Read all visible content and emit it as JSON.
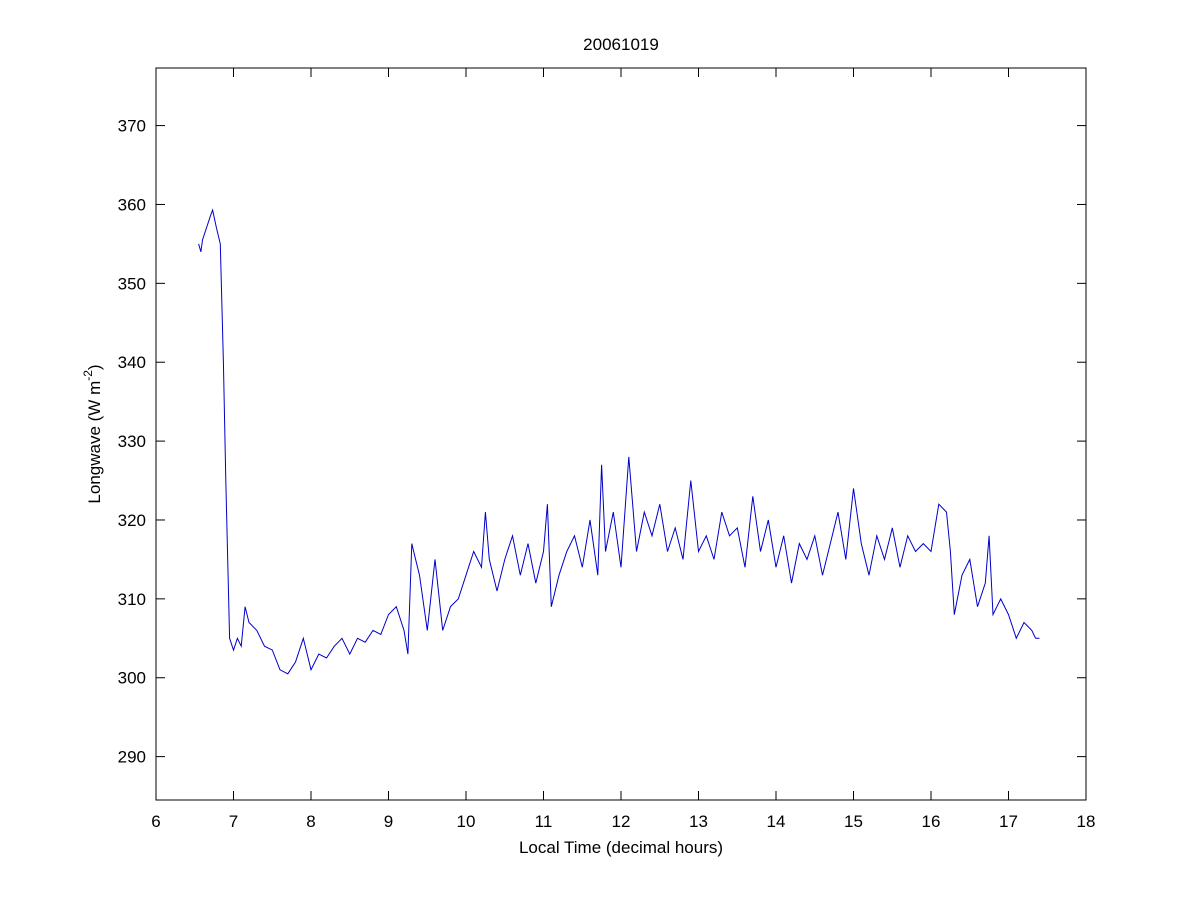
{
  "chart_data": {
    "type": "line",
    "title": "20061019",
    "xlabel": "Local Time (decimal hours)",
    "ylabel": [
      "Longwave (W m",
      "-2",
      ")"
    ],
    "x": [
      6.55,
      6.58,
      6.6,
      6.65,
      6.7,
      6.73,
      6.78,
      6.83,
      6.87,
      6.9,
      6.95,
      7.0,
      7.05,
      7.1,
      7.15,
      7.2,
      7.3,
      7.4,
      7.5,
      7.6,
      7.7,
      7.8,
      7.9,
      8.0,
      8.1,
      8.2,
      8.3,
      8.4,
      8.5,
      8.6,
      8.7,
      8.8,
      8.9,
      9.0,
      9.1,
      9.2,
      9.25,
      9.3,
      9.35,
      9.4,
      9.5,
      9.6,
      9.7,
      9.8,
      9.9,
      10.0,
      10.1,
      10.2,
      10.25,
      10.3,
      10.4,
      10.5,
      10.6,
      10.7,
      10.8,
      10.9,
      11.0,
      11.05,
      11.1,
      11.2,
      11.3,
      11.4,
      11.5,
      11.6,
      11.7,
      11.75,
      11.8,
      11.9,
      12.0,
      12.1,
      12.2,
      12.3,
      12.4,
      12.5,
      12.6,
      12.7,
      12.8,
      12.9,
      13.0,
      13.1,
      13.2,
      13.3,
      13.4,
      13.5,
      13.6,
      13.7,
      13.8,
      13.9,
      14.0,
      14.1,
      14.2,
      14.3,
      14.4,
      14.5,
      14.6,
      14.7,
      14.8,
      14.9,
      15.0,
      15.1,
      15.2,
      15.3,
      15.4,
      15.5,
      15.6,
      15.7,
      15.8,
      15.9,
      16.0,
      16.1,
      16.2,
      16.25,
      16.3,
      16.4,
      16.5,
      16.6,
      16.7,
      16.75,
      16.8,
      16.9,
      17.0,
      17.1,
      17.2,
      17.3,
      17.35,
      17.4
    ],
    "series": [
      {
        "color": "#0000cc",
        "values": [
          355,
          354,
          355.5,
          357,
          358.5,
          359.3,
          357,
          355,
          340,
          325,
          305,
          303.5,
          305,
          304,
          309,
          307,
          306,
          304,
          303.5,
          301,
          300.5,
          302,
          305,
          301,
          303,
          302.5,
          304,
          305,
          303,
          305,
          304.5,
          306,
          305.5,
          308,
          309,
          306,
          303,
          317,
          315,
          313,
          306,
          315,
          306,
          309,
          310,
          313,
          316,
          314,
          321,
          315,
          311,
          315,
          318,
          313,
          317,
          312,
          316,
          322,
          309,
          313,
          316,
          318,
          314,
          320,
          313,
          327,
          316,
          321,
          314,
          328,
          316,
          321,
          318,
          322,
          316,
          319,
          315,
          325,
          316,
          318,
          315,
          321,
          318,
          319,
          314,
          323,
          316,
          320,
          314,
          318,
          312,
          317,
          315,
          318,
          313,
          317,
          321,
          315,
          324,
          317,
          313,
          318,
          315,
          319,
          314,
          318,
          316,
          317,
          316,
          322,
          321,
          316,
          308,
          313,
          315,
          309,
          312,
          318,
          308,
          310,
          308,
          305,
          307,
          306,
          305,
          305
        ]
      }
    ],
    "xlim": [
      6,
      18
    ],
    "xticks": [
      6,
      7,
      8,
      9,
      10,
      11,
      12,
      13,
      14,
      15,
      16,
      17,
      18
    ],
    "ylim": [
      284.5,
      377.3
    ],
    "yticks": [
      290,
      300,
      310,
      320,
      330,
      340,
      350,
      360,
      370
    ]
  }
}
